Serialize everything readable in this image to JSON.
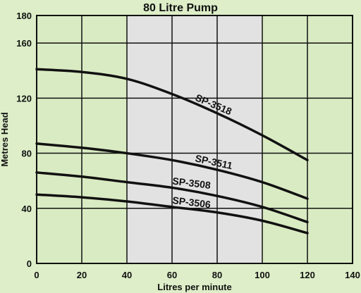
{
  "chart_data": {
    "type": "line",
    "title": "80 Litre Pump",
    "xlabel": "Litres per minute",
    "ylabel": "Metres Head",
    "xlim": [
      0,
      140
    ],
    "ylim": [
      0,
      180
    ],
    "xticks": [
      0,
      20,
      40,
      60,
      80,
      100,
      120,
      140
    ],
    "yticks": [
      0,
      40,
      80,
      120,
      160,
      180
    ],
    "grid": true,
    "shaded_x_range": [
      40,
      100
    ],
    "colors": {
      "background": "#ddeec8",
      "plot_area": "#d9ebc2",
      "shaded_band": "#e2e2e2",
      "line": "#111111"
    },
    "series": [
      {
        "name": "SP-3518",
        "x": [
          0,
          20,
          40,
          60,
          80,
          100,
          120
        ],
        "y": [
          141,
          139,
          134,
          123,
          109,
          93,
          75
        ]
      },
      {
        "name": "SP-3511",
        "x": [
          0,
          20,
          40,
          60,
          80,
          100,
          120
        ],
        "y": [
          87,
          84,
          80,
          75,
          68,
          59,
          47
        ]
      },
      {
        "name": "SP-3508",
        "x": [
          0,
          20,
          40,
          60,
          80,
          100,
          120
        ],
        "y": [
          66,
          63,
          59,
          55,
          49,
          41,
          30
        ]
      },
      {
        "name": "SP-3506",
        "x": [
          0,
          20,
          40,
          60,
          80,
          100,
          120
        ],
        "y": [
          50,
          48,
          45,
          41,
          37,
          31,
          22
        ]
      }
    ]
  }
}
